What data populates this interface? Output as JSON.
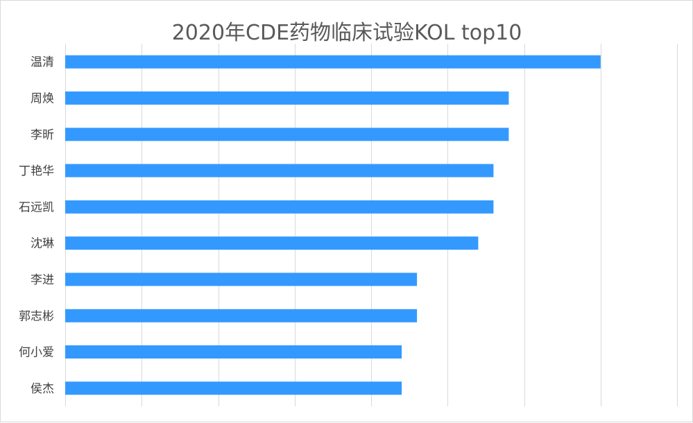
{
  "chart_data": {
    "type": "bar",
    "orientation": "horizontal",
    "title": "2020年CDE药物临床试验KOL top10",
    "categories": [
      "温清",
      "周焕",
      "李昕",
      "丁艳华",
      "石远凯",
      "沈琳",
      "李进",
      "郭志彬",
      "何小爱",
      "侯杰"
    ],
    "values": [
      35,
      29,
      29,
      28,
      28,
      27,
      23,
      23,
      22,
      22
    ],
    "xlim": [
      0,
      40
    ],
    "grid": true,
    "legend": "none",
    "bar_color": "#3399ff",
    "gridline_color": "#d9d9d9"
  }
}
